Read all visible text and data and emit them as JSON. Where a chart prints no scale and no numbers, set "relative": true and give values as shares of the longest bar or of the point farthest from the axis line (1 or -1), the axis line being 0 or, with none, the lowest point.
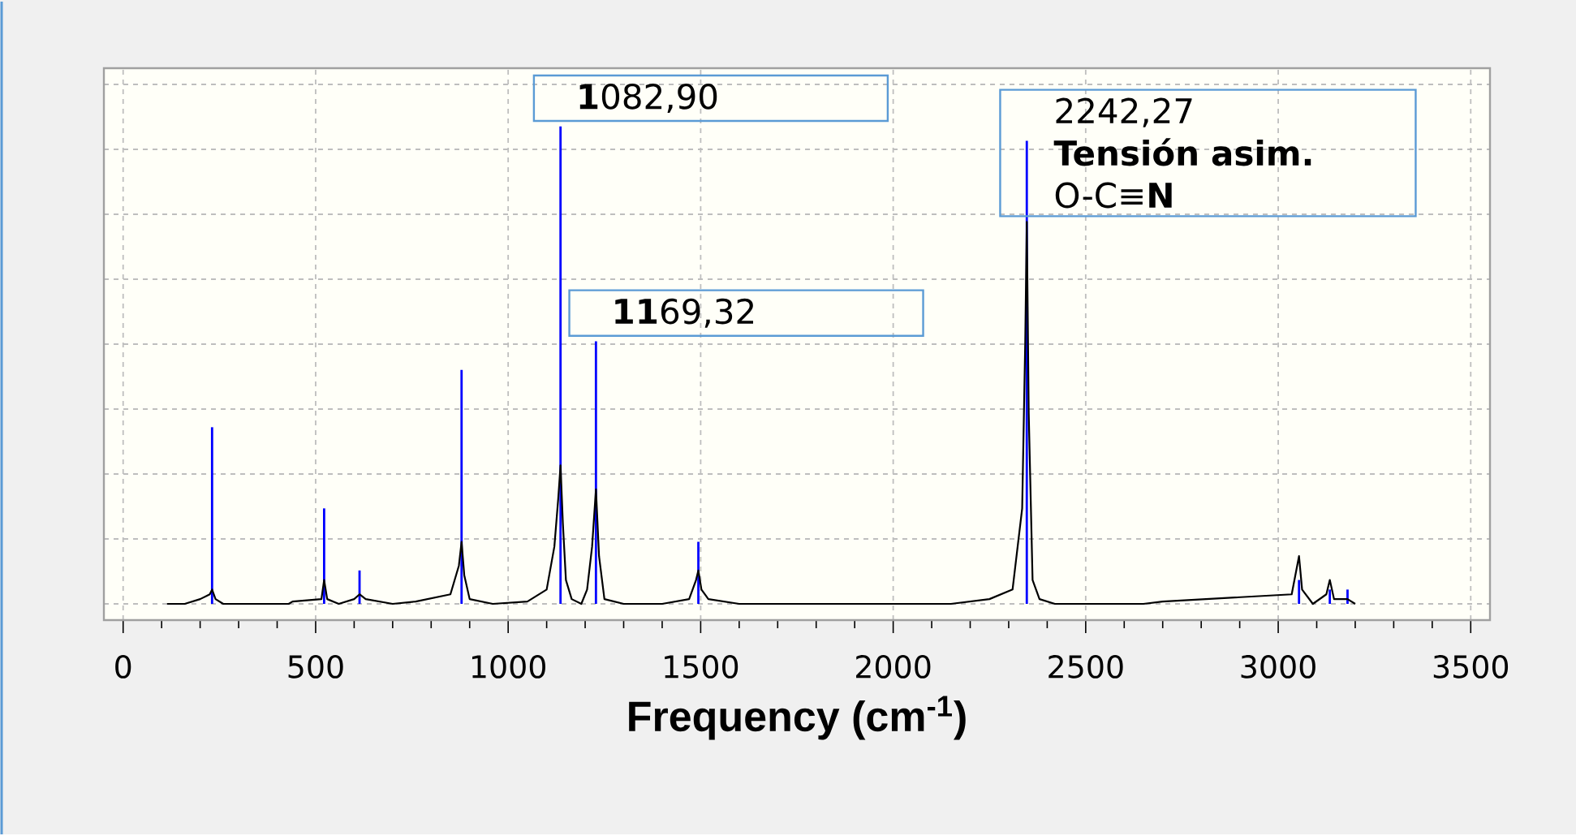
{
  "chart_data": {
    "type": "bar",
    "xlabel": "Frequency (cm$^{-1}$)",
    "relative": true,
    "grid": true,
    "marker": "none",
    "line_style": "solid",
    "xlim": [
      -50,
      3550
    ],
    "xticks": [
      0,
      500,
      1000,
      1500,
      2000,
      2500,
      3000,
      3500
    ],
    "series": [
      {
        "color": "#0000ff",
        "x": [
          231,
          522,
          614,
          879,
          1136,
          1228,
          1494,
          2347,
          3054,
          3134,
          3180
        ],
        "values": [
          0.37,
          0.2,
          0.07,
          0.49,
          1.0,
          0.55,
          0.13,
          0.97,
          0.05,
          0.03,
          0.03
        ]
      },
      {
        "type": "line",
        "color": "#000000",
        "x": [
          114,
          160,
          200,
          225,
          231,
          240,
          260,
          430,
          440,
          515,
          522,
          530,
          560,
          600,
          614,
          630,
          700,
          760,
          850,
          872,
          879,
          886,
          900,
          960,
          1050,
          1100,
          1120,
          1130,
          1136,
          1142,
          1150,
          1165,
          1190,
          1205,
          1218,
          1228,
          1236,
          1250,
          1300,
          1400,
          1470,
          1488,
          1494,
          1502,
          1520,
          1600,
          2150,
          2250,
          2310,
          2335,
          2343,
          2347,
          2352,
          2362,
          2380,
          2420,
          2650,
          2700,
          3035,
          3054,
          3062,
          3090,
          3125,
          3134,
          3145,
          3180,
          3200
        ],
        "values": [
          0,
          0,
          0.01,
          0.02,
          0.03,
          0.01,
          0,
          0,
          0.005,
          0.01,
          0.05,
          0.01,
          0,
          0.01,
          0.02,
          0.01,
          0,
          0.005,
          0.02,
          0.08,
          0.13,
          0.06,
          0.01,
          0,
          0.005,
          0.03,
          0.12,
          0.22,
          0.29,
          0.17,
          0.05,
          0.01,
          0,
          0.03,
          0.12,
          0.24,
          0.1,
          0.01,
          0,
          0,
          0.01,
          0.05,
          0.07,
          0.03,
          0.01,
          0,
          0,
          0.01,
          0.03,
          0.2,
          0.55,
          0.8,
          0.4,
          0.05,
          0.01,
          0,
          0,
          0.005,
          0.02,
          0.1,
          0.03,
          0,
          0.02,
          0.05,
          0.01,
          0.01,
          0
        ]
      }
    ],
    "annotations": [
      {
        "text": "**1**082,90",
        "x": 1136,
        "y": 1.0
      },
      {
        "text": "**11**69,32",
        "x": 1228,
        "y": 0.55
      },
      {
        "text": "2242,27",
        "x": 2347,
        "y": 0.97
      },
      "**Tensión asim.**",
      "O-C≡**N**"
    ]
  }
}
